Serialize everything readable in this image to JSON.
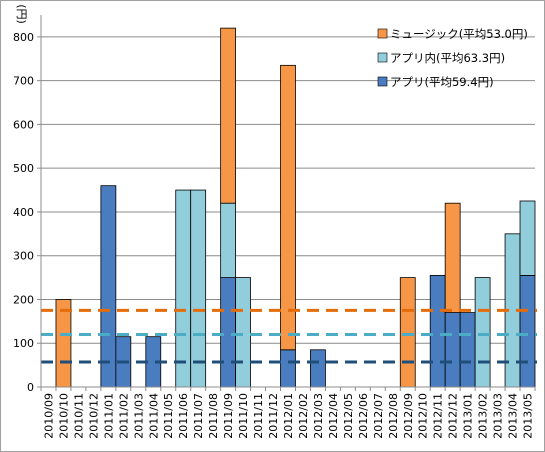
{
  "chart_data": {
    "type": "bar",
    "stacked": true,
    "unit_label": "(円)",
    "ylim": [
      0,
      850
    ],
    "yticks": [
      0,
      100,
      200,
      300,
      400,
      500,
      600,
      700,
      800
    ],
    "grid": "horizontal",
    "legend_position": "top-right",
    "categories": [
      "2010/09",
      "2010/10",
      "2010/11",
      "2010/12",
      "2011/01",
      "2011/02",
      "2011/03",
      "2011/04",
      "2011/05",
      "2011/06",
      "2011/07",
      "2011/08",
      "2011/09",
      "2011/10",
      "2011/11",
      "2011/12",
      "2012/01",
      "2012/02",
      "2012/03",
      "2012/04",
      "2012/05",
      "2012/06",
      "2012/07",
      "2012/08",
      "2012/09",
      "2012/10",
      "2012/11",
      "2012/12",
      "2013/01",
      "2013/02",
      "2013/03",
      "2013/04",
      "2013/05"
    ],
    "series": [
      {
        "name": "アプリ(平均59.4円)",
        "color": "#4a7cc0",
        "values": [
          0,
          0,
          0,
          0,
          460,
          115,
          0,
          115,
          0,
          0,
          0,
          0,
          250,
          0,
          0,
          0,
          85,
          0,
          85,
          0,
          0,
          0,
          0,
          0,
          0,
          0,
          255,
          170,
          170,
          0,
          0,
          0,
          255
        ]
      },
      {
        "name": "アプリ内(平均63.3円)",
        "color": "#92cddc",
        "values": [
          0,
          0,
          0,
          0,
          0,
          0,
          0,
          0,
          0,
          450,
          450,
          0,
          170,
          250,
          0,
          0,
          0,
          0,
          0,
          0,
          0,
          0,
          0,
          0,
          0,
          0,
          0,
          0,
          0,
          250,
          0,
          350,
          170
        ]
      },
      {
        "name": "ミュージック(平均53.0円)",
        "color": "#f79646",
        "values": [
          0,
          200,
          0,
          0,
          0,
          0,
          0,
          0,
          0,
          0,
          0,
          0,
          400,
          0,
          0,
          0,
          650,
          0,
          0,
          0,
          0,
          0,
          0,
          0,
          250,
          0,
          0,
          250,
          0,
          0,
          0,
          0,
          0
        ]
      }
    ],
    "average_lines": [
      {
        "value": 175,
        "color": "#e46c0a"
      },
      {
        "value": 120,
        "color": "#4bacc6"
      },
      {
        "value": 57,
        "color": "#1f4e79"
      }
    ]
  }
}
